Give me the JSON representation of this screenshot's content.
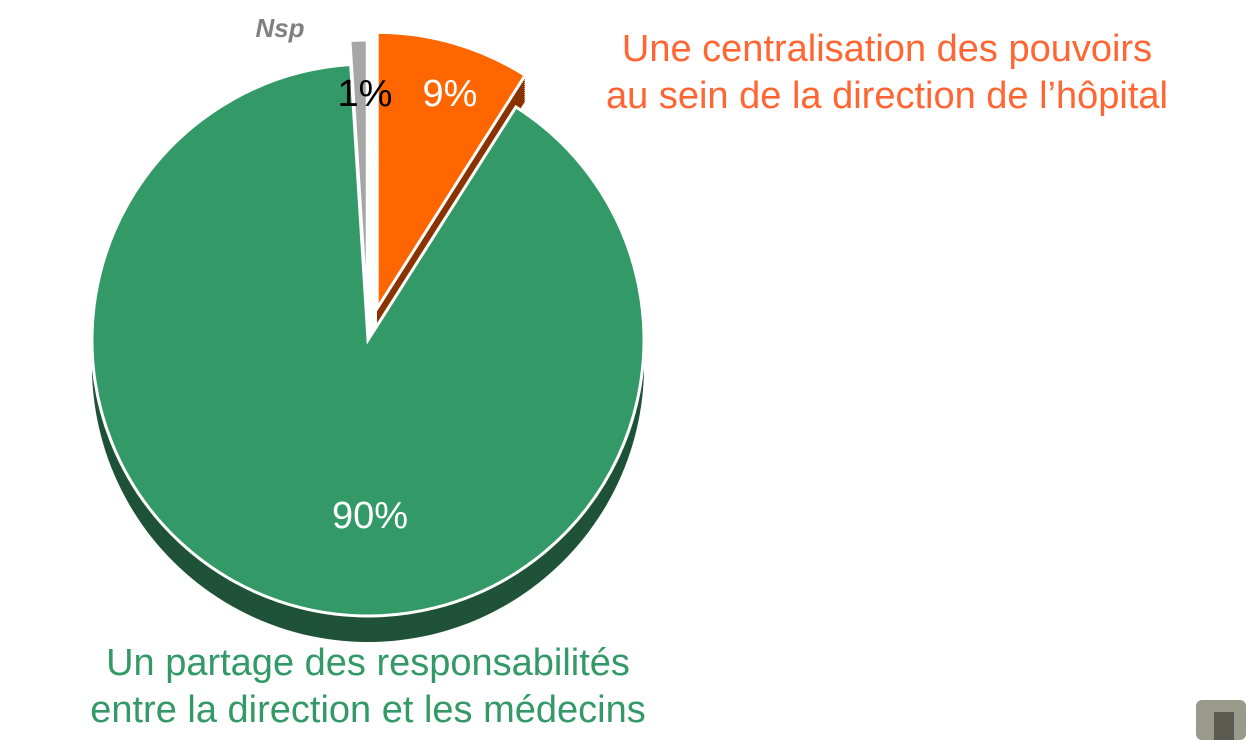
{
  "chart_data": {
    "type": "pie",
    "categories": [
      "Une centralisation des pouvoirs\nau sein de la direction de l’hôpital",
      "Un partage des responsabilités\nentre la direction et les médecins",
      "Nsp"
    ],
    "values": [
      9,
      90,
      1
    ],
    "value_labels": [
      "9%",
      "90%",
      "1%"
    ],
    "colors": [
      "#ff6600",
      "#339966",
      "#a6a6a6"
    ]
  }
}
